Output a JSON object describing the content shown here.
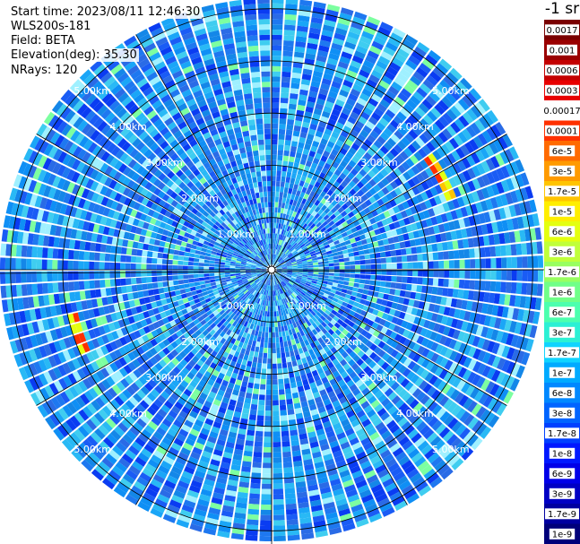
{
  "info": {
    "start_time": "Start time: 2023/08/11 12:46:30",
    "instrument": "WLS200s-181",
    "field": "Field: BETA",
    "elevation": "Elevation(deg): 35.30",
    "nrays": "NRays: 120"
  },
  "colorbar": {
    "unit": "-1 sr",
    "labels": [
      "0.0017",
      "0.001",
      "0.0006",
      "0.0003",
      "0.00017",
      "0.0001",
      "6e-5",
      "3e-5",
      "1.7e-5",
      "1e-5",
      "6e-6",
      "3e-6",
      "1.7e-6",
      "1e-6",
      "6e-7",
      "3e-7",
      "1.7e-7",
      "1e-7",
      "6e-8",
      "3e-8",
      "1.7e-8",
      "1e-8",
      "6e-9",
      "3e-9",
      "1.7e-9",
      "1e-9"
    ],
    "colors": [
      "#7a0000",
      "#9a0000",
      "#c40000",
      "#e80000",
      "#ffffff",
      "#ff3000",
      "#ff6a00",
      "#ff9a00",
      "#ffc400",
      "#ffee00",
      "#e4ff10",
      "#c0ff3a",
      "#98ff60",
      "#70ff88",
      "#4cffae",
      "#2cf0d4",
      "#10d4ff",
      "#00aaff",
      "#0088ff",
      "#0064ff",
      "#0040ff",
      "#0018ff",
      "#0000e8",
      "#0000c4",
      "#0000a0",
      "#00007a"
    ]
  },
  "chart_data": {
    "type": "heatmap",
    "subtype": "polar-ppi",
    "nrays": 120,
    "range_rings_km": [
      1,
      2,
      3,
      4,
      5
    ],
    "range_labels": [
      "1.00km",
      "2.00km",
      "3.00km",
      "4.00km",
      "5.00km"
    ],
    "max_range_km": 5.2,
    "typical_beta": "1e-7",
    "features": [
      {
        "azimuth_deg": 60,
        "range_km": 3.7,
        "peak_beta": "6e-5"
      },
      {
        "azimuth_deg": 250,
        "range_km": 3.9,
        "peak_beta": "6e-5"
      }
    ],
    "colors": {
      "background": "#ffffff",
      "grid": "#000000",
      "label": "#ffffff"
    }
  }
}
